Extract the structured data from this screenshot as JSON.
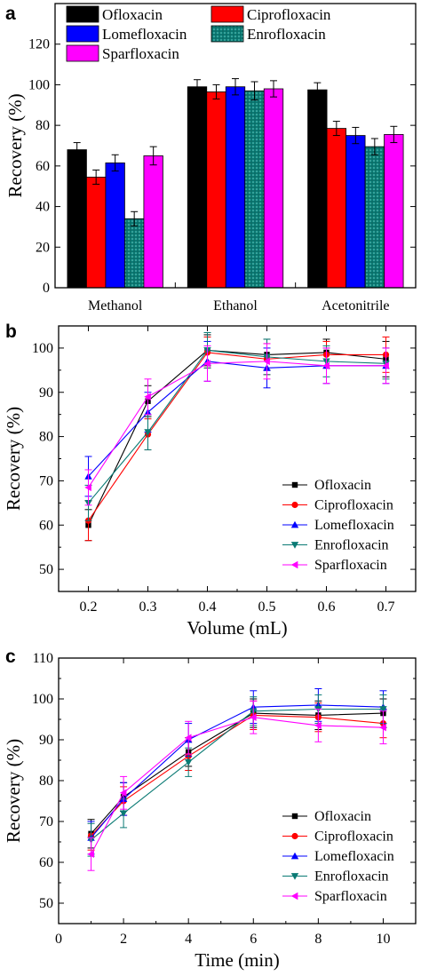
{
  "chart_data": [
    {
      "panel": "a",
      "type": "bar",
      "ylabel": "Recovery (%)",
      "xlabel": "",
      "ylim": [
        0,
        140
      ],
      "yticks": [
        0,
        20,
        40,
        60,
        80,
        100,
        120
      ],
      "categories": [
        "Methanol",
        "Ethanol",
        "Acetonitrile"
      ],
      "legend_position": "top",
      "series": [
        {
          "name": "Ofloxacin",
          "color": "#000000",
          "values": [
            68,
            99,
            97.5
          ],
          "errors": [
            3.5,
            3.5,
            3.5
          ]
        },
        {
          "name": "Ciprofloxacin",
          "color": "#ff0000",
          "values": [
            54.5,
            96.5,
            78.5
          ],
          "errors": [
            3.5,
            3.5,
            3.5
          ]
        },
        {
          "name": "Lomefloxacin",
          "color": "#0000ff",
          "values": [
            61.5,
            99,
            75
          ],
          "errors": [
            4,
            4,
            4
          ]
        },
        {
          "name": "Enrofloxacin",
          "color": "#0a7a74",
          "values": [
            34,
            97,
            69.5
          ],
          "errors": [
            3.5,
            4.5,
            4
          ],
          "pattern": "dots"
        },
        {
          "name": "Sparfloxacin",
          "color": "#ff00ff",
          "values": [
            65,
            98,
            75.5
          ],
          "errors": [
            4.5,
            4,
            4
          ]
        }
      ]
    },
    {
      "panel": "b",
      "type": "line",
      "xlabel": "Volume (mL)",
      "ylabel": "Recovery (%)",
      "xlim": [
        0.15,
        0.75
      ],
      "ylim": [
        45,
        105
      ],
      "xticks": [
        "0.2",
        "0.3",
        "0.4",
        "0.5",
        "0.6",
        "0.7"
      ],
      "yticks": [
        50,
        60,
        70,
        80,
        90,
        100
      ],
      "x": [
        0.2,
        0.3,
        0.4,
        0.5,
        0.6,
        0.7
      ],
      "legend_position": "lower-right",
      "series": [
        {
          "name": "Ofloxacin",
          "color": "#000000",
          "marker": "square",
          "values": [
            60,
            88,
            99.5,
            98.5,
            99,
            97.5
          ],
          "errors": [
            3.5,
            3.5,
            3.5,
            3.5,
            3,
            4
          ]
        },
        {
          "name": "Ciprofloxacin",
          "color": "#ff0000",
          "marker": "circle",
          "values": [
            61,
            80.5,
            99,
            97.5,
            98.5,
            98.5
          ],
          "errors": [
            4.5,
            3.5,
            3.5,
            3.5,
            3,
            4
          ]
        },
        {
          "name": "Lomefloxacin",
          "color": "#0000ff",
          "marker": "triangle-up",
          "values": [
            71,
            85.5,
            97,
            95.5,
            96,
            96
          ],
          "errors": [
            4.5,
            4.5,
            4.5,
            4.5,
            4,
            4
          ]
        },
        {
          "name": "Enrofloxacin",
          "color": "#0a7a74",
          "marker": "triangle-down",
          "values": [
            65,
            81,
            99.5,
            98,
            97,
            96.5
          ],
          "errors": [
            4,
            4,
            4,
            4,
            3.5,
            3.5
          ]
        },
        {
          "name": "Sparfloxacin",
          "color": "#ff00ff",
          "marker": "triangle-left",
          "values": [
            68.5,
            89,
            96.5,
            97,
            96,
            96
          ],
          "errors": [
            4,
            4,
            4,
            4,
            4,
            4
          ]
        }
      ]
    },
    {
      "panel": "c",
      "type": "line",
      "xlabel": "Time (min)",
      "ylabel": "Recovery (%)",
      "xlim": [
        0,
        11
      ],
      "ylim": [
        45,
        110
      ],
      "xticks": [
        "0",
        "2",
        "4",
        "6",
        "8",
        "10"
      ],
      "yticks": [
        50,
        60,
        70,
        80,
        90,
        100,
        110
      ],
      "x": [
        1,
        2,
        4,
        6,
        8,
        10
      ],
      "legend_position": "lower-right",
      "series": [
        {
          "name": "Ofloxacin",
          "color": "#000000",
          "marker": "square",
          "values": [
            67,
            76,
            87,
            96.5,
            96,
            96.5
          ],
          "errors": [
            3.5,
            3.5,
            3.5,
            3.5,
            3.5,
            3.5
          ]
        },
        {
          "name": "Ciprofloxacin",
          "color": "#ff0000",
          "marker": "circle",
          "values": [
            66.5,
            75,
            86,
            96,
            95.5,
            94
          ],
          "errors": [
            3.5,
            3.5,
            3.5,
            3.5,
            3.5,
            3.5
          ]
        },
        {
          "name": "Lomefloxacin",
          "color": "#0000ff",
          "marker": "triangle-up",
          "values": [
            66,
            75.5,
            90,
            98,
            98.5,
            98
          ],
          "errors": [
            4,
            4,
            4,
            4,
            4,
            4
          ]
        },
        {
          "name": "Enrofloxacin",
          "color": "#0a7a74",
          "marker": "triangle-down",
          "values": [
            65.5,
            72,
            84.5,
            97,
            97.5,
            97.5
          ],
          "errors": [
            4,
            3.5,
            3.5,
            3.5,
            3.5,
            3.5
          ]
        },
        {
          "name": "Sparfloxacin",
          "color": "#ff00ff",
          "marker": "triangle-left",
          "values": [
            62,
            77,
            90.5,
            95.5,
            93.5,
            93
          ],
          "errors": [
            4,
            4,
            4,
            4,
            4,
            4
          ]
        }
      ]
    }
  ]
}
